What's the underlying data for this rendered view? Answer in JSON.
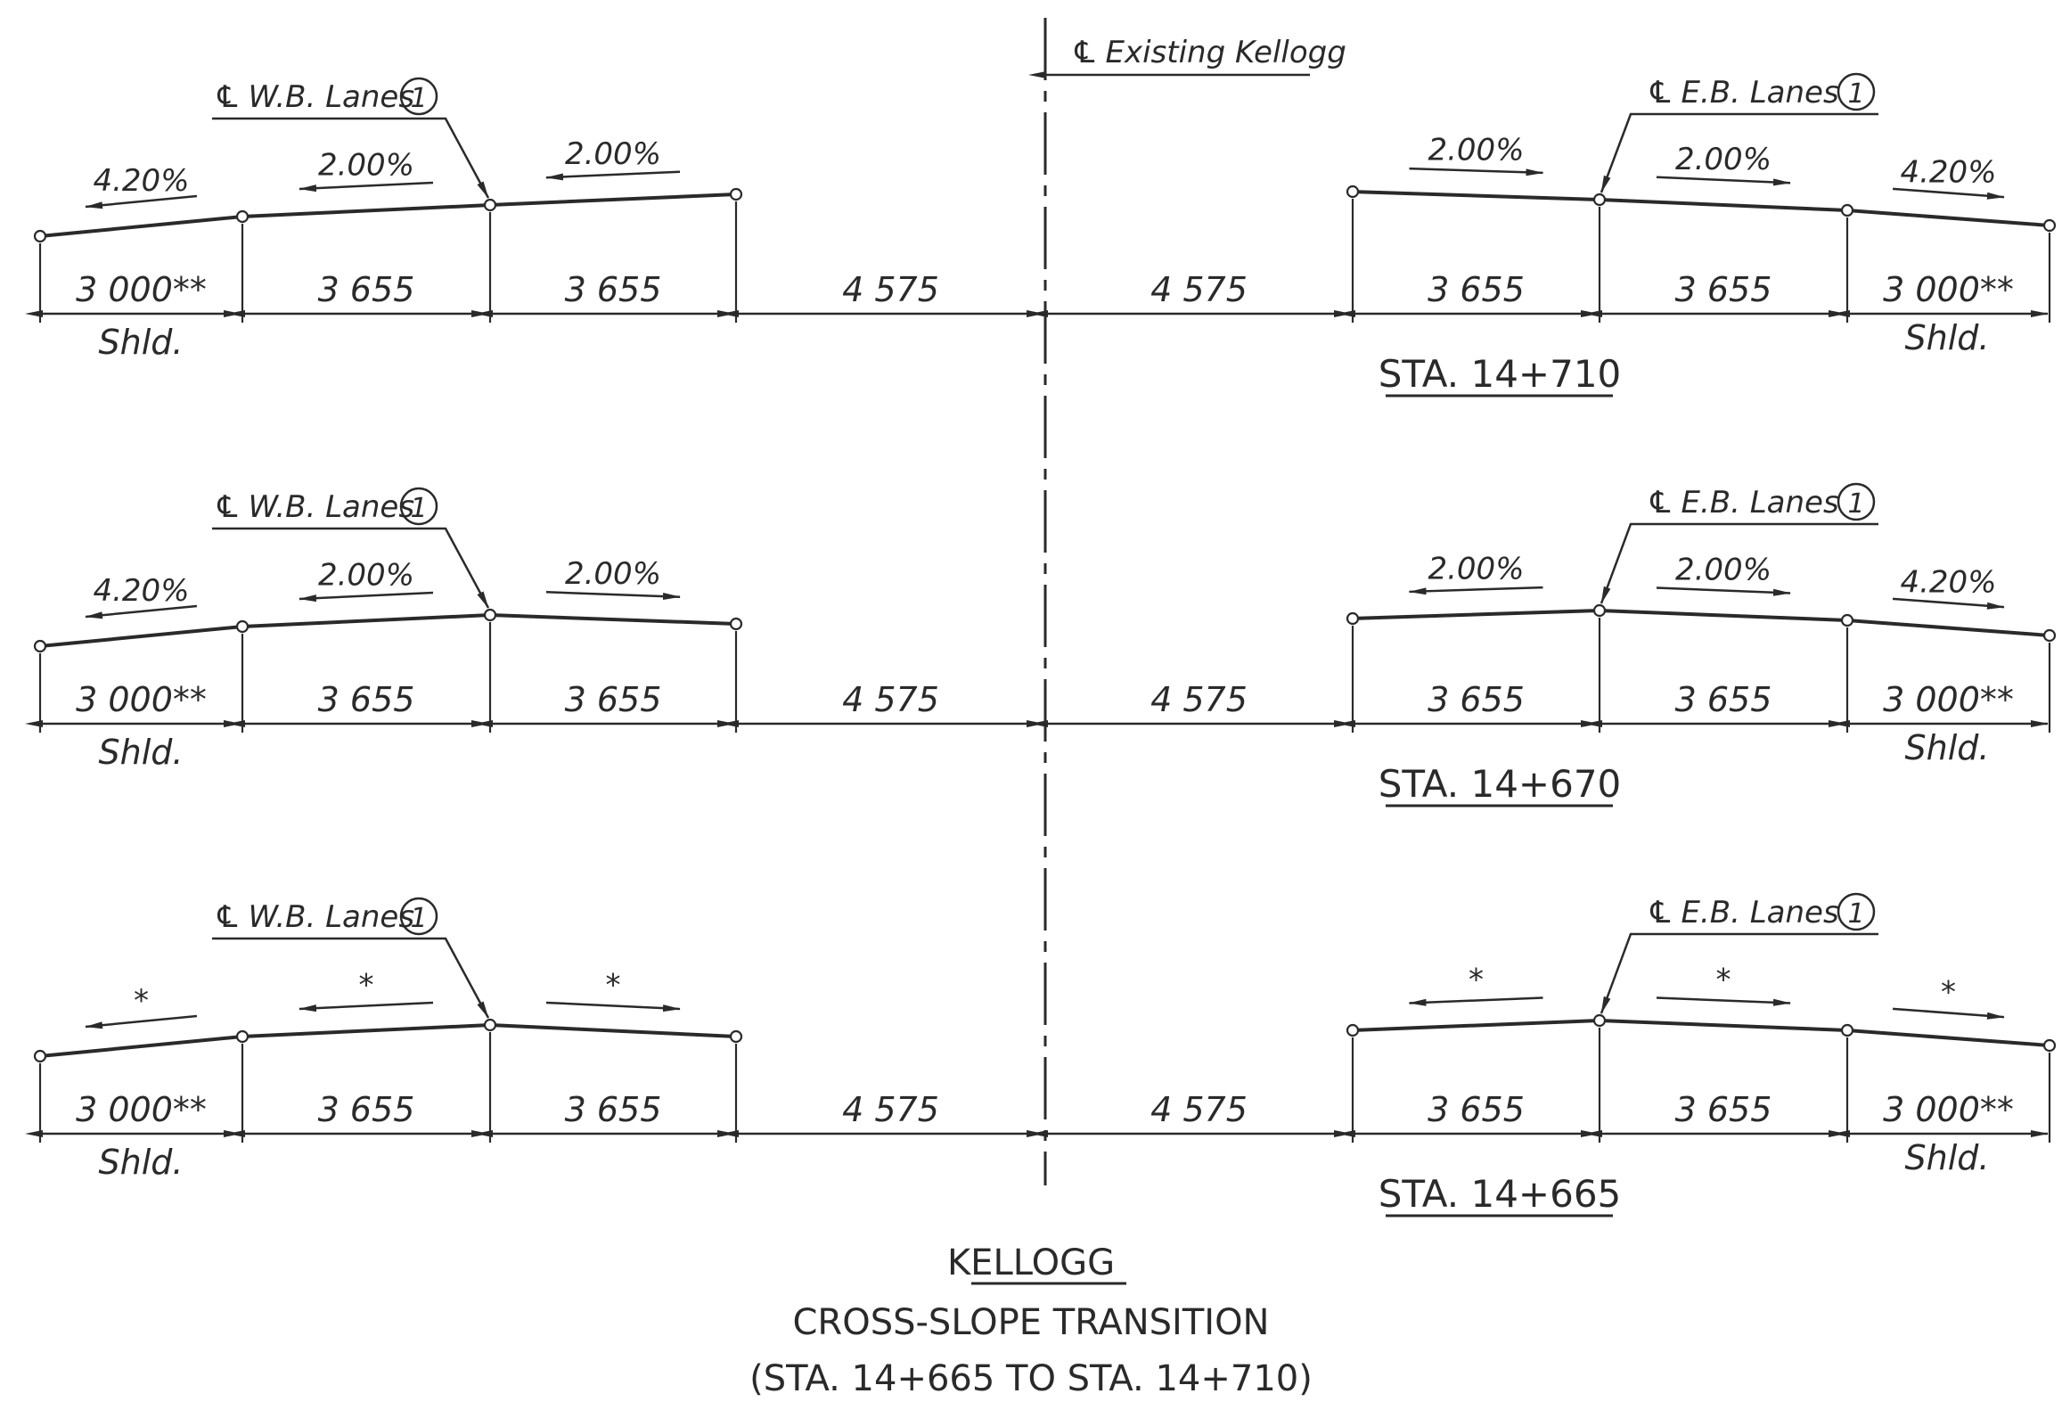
{
  "centerline": {
    "symbol": "℄",
    "label": "Existing Kellogg"
  },
  "note_marker": "1",
  "shoulder_label": "Shld.",
  "sections": [
    {
      "station": "STA. 14+710",
      "wb": {
        "label": "W.B. Lanes",
        "widths": [
          "3 000**",
          "3 655",
          "3 655",
          "4 575"
        ],
        "slopes": [
          "4.20%",
          "2.00%",
          "2.00%"
        ]
      },
      "eb": {
        "label": "E.B. Lanes",
        "widths": [
          "4 575",
          "3 655",
          "3 655",
          "3 000**"
        ],
        "slopes": [
          "2.00%",
          "2.00%",
          "4.20%"
        ]
      }
    },
    {
      "station": "STA. 14+670",
      "wb": {
        "label": "W.B. Lanes",
        "widths": [
          "3 000**",
          "3 655",
          "3 655",
          "4 575"
        ],
        "slopes": [
          "4.20%",
          "2.00%",
          "2.00%"
        ]
      },
      "eb": {
        "label": "E.B. Lanes",
        "widths": [
          "4 575",
          "3 655",
          "3 655",
          "3 000**"
        ],
        "slopes": [
          "2.00%",
          "2.00%",
          "4.20%"
        ]
      }
    },
    {
      "station": "STA. 14+665",
      "wb": {
        "label": "W.B. Lanes",
        "widths": [
          "3 000**",
          "3 655",
          "3 655",
          "4 575"
        ],
        "slopes": [
          "*",
          "*",
          "*"
        ]
      },
      "eb": {
        "label": "E.B. Lanes",
        "widths": [
          "4 575",
          "3 655",
          "3 655",
          "3 000**"
        ],
        "slopes": [
          "*",
          "*",
          "*"
        ]
      }
    }
  ],
  "title": {
    "line1": "KELLOGG",
    "line2": "CROSS-SLOPE TRANSITION",
    "line3": "(STA. 14+665 TO STA. 14+710)"
  }
}
